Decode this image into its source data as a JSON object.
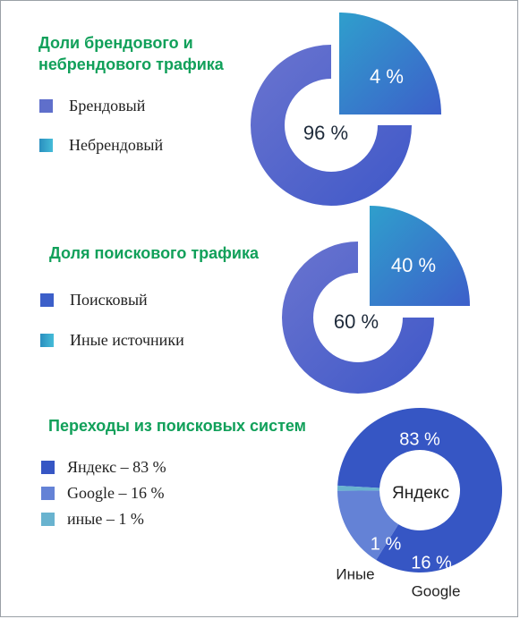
{
  "colors": {
    "title_green": "#11a05a",
    "ring_purple": "#5f6fcb",
    "blue_dark": "#3656c4",
    "blue_mid": "#6482d6",
    "teal": "#35a3c9",
    "teal_light": "#69b3cf"
  },
  "chart_data": [
    {
      "type": "pie",
      "variant": "donut-exploded",
      "title_lines": [
        "Доли брендового и",
        "небрендового трафика"
      ],
      "series": [
        {
          "name": "Брендовый",
          "value": 96,
          "label": "96 %",
          "color": "#5f6fcb"
        },
        {
          "name": "Небрендовый",
          "value": 4,
          "label": "4 %",
          "color": "#35a3c9"
        }
      ]
    },
    {
      "type": "pie",
      "variant": "donut-exploded",
      "title_lines": [
        "Доля поискового трафика"
      ],
      "series": [
        {
          "name": "Поисковый",
          "value": 60,
          "label": "60 %",
          "color": "#5f6fcb"
        },
        {
          "name": "Иные источники",
          "value": 40,
          "label": "40 %",
          "color": "#35a3c9"
        }
      ]
    },
    {
      "type": "pie",
      "variant": "donut",
      "title_lines": [
        "Переходы из поисковых систем"
      ],
      "center_label": "Яндекс",
      "series": [
        {
          "name": "Яндекс",
          "legend": "Яндекс – 83 %",
          "value": 83,
          "label": "83 %",
          "outer_label": "",
          "color": "#3656c4"
        },
        {
          "name": "Google",
          "legend": "Google – 16 %",
          "value": 16,
          "label": "16 %",
          "outer_label": "Google",
          "color": "#6482d6"
        },
        {
          "name": "Иные",
          "legend": "иные – 1 %",
          "value": 1,
          "label": "1 %",
          "outer_label": "Иные",
          "color": "#69b3cf"
        }
      ]
    }
  ]
}
